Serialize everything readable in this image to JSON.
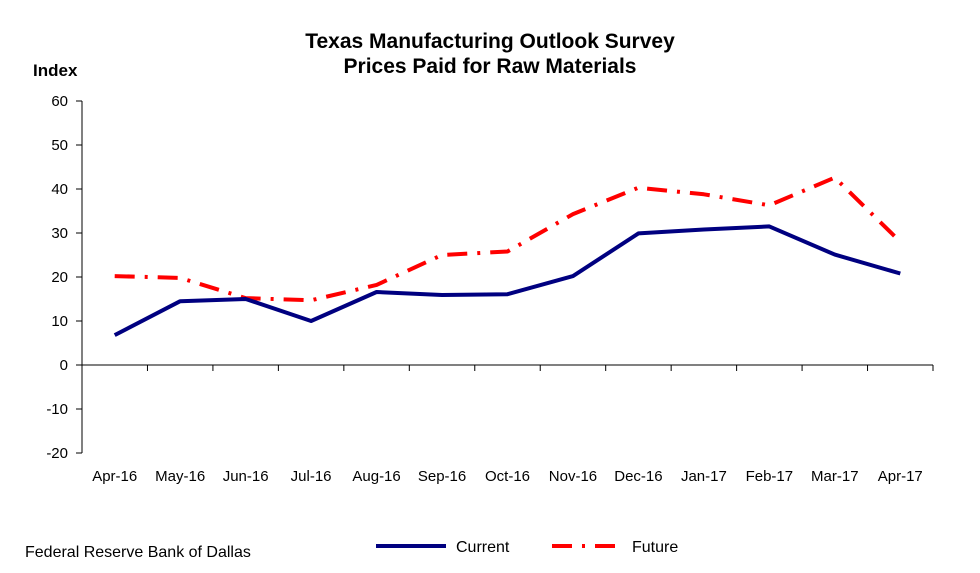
{
  "chart_data": {
    "type": "line",
    "title": "Texas Manufacturing Outlook Survey",
    "subtitle": "Prices Paid for Raw Materials",
    "ylabel": "Index",
    "xlabel": "",
    "categories": [
      "Apr-16",
      "May-16",
      "Jun-16",
      "Jul-16",
      "Aug-16",
      "Sep-16",
      "Oct-16",
      "Nov-16",
      "Dec-16",
      "Jan-17",
      "Feb-17",
      "Mar-17",
      "Apr-17"
    ],
    "ylim": [
      -20,
      60
    ],
    "yticks": [
      "60",
      "50",
      "40",
      "30",
      "20",
      "10",
      "0",
      "-10",
      "-20"
    ],
    "ytick_values": [
      60,
      50,
      40,
      30,
      20,
      10,
      0,
      -10,
      -20
    ],
    "grid": false,
    "legend_position": "bottom",
    "series": [
      {
        "name": "Current",
        "color": "#000080",
        "style": "solid",
        "values": [
          6.8,
          14.5,
          15.0,
          10.0,
          16.6,
          15.9,
          16.1,
          20.2,
          29.9,
          30.8,
          31.5,
          25.1,
          20.8
        ]
      },
      {
        "name": "Future",
        "color": "#ff0000",
        "style": "dash-dot",
        "values": [
          20.2,
          19.8,
          15.2,
          14.7,
          18.2,
          25.0,
          25.8,
          34.3,
          40.3,
          38.8,
          36.3,
          42.6,
          28.0
        ]
      }
    ]
  },
  "source": "Federal Reserve Bank of Dallas"
}
